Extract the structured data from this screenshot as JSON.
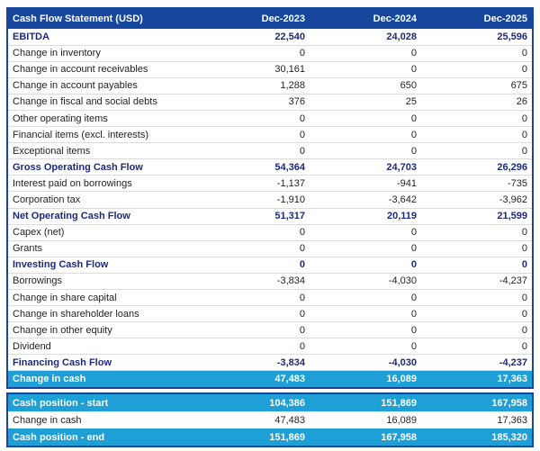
{
  "colors": {
    "header_bg": "#17479c",
    "border": "#17479c",
    "highlight_bg": "#1e9fd6",
    "bold_text": "#1c2a7e",
    "normal_text": "#1f1f1f",
    "divider": "#dcdcdc"
  },
  "header": {
    "title": "Cash Flow Statement (USD)",
    "columns": [
      "Dec-2023",
      "Dec-2024",
      "Dec-2025"
    ]
  },
  "main_table": {
    "rows": [
      {
        "label": "EBITDA",
        "values": [
          "22,540",
          "24,028",
          "25,596"
        ],
        "style": "bold"
      },
      {
        "label": "Change in inventory",
        "values": [
          "0",
          "0",
          "0"
        ],
        "style": "normal"
      },
      {
        "label": "Change in account receivables",
        "values": [
          "30,161",
          "0",
          "0"
        ],
        "style": "normal"
      },
      {
        "label": "Change in account payables",
        "values": [
          "1,288",
          "650",
          "675"
        ],
        "style": "normal"
      },
      {
        "label": "Change in fiscal and social debts",
        "values": [
          "376",
          "25",
          "26"
        ],
        "style": "normal"
      },
      {
        "label": "Other operating items",
        "values": [
          "0",
          "0",
          "0"
        ],
        "style": "normal"
      },
      {
        "label": "Financial items (excl. interests)",
        "values": [
          "0",
          "0",
          "0"
        ],
        "style": "normal"
      },
      {
        "label": "Exceptional items",
        "values": [
          "0",
          "0",
          "0"
        ],
        "style": "normal"
      },
      {
        "label": "Gross Operating Cash Flow",
        "values": [
          "54,364",
          "24,703",
          "26,296"
        ],
        "style": "bold"
      },
      {
        "label": "Interest paid on borrowings",
        "values": [
          "-1,137",
          "-941",
          "-735"
        ],
        "style": "normal"
      },
      {
        "label": "Corporation tax",
        "values": [
          "-1,910",
          "-3,642",
          "-3,962"
        ],
        "style": "normal"
      },
      {
        "label": "Net Operating Cash Flow",
        "values": [
          "51,317",
          "20,119",
          "21,599"
        ],
        "style": "bold"
      },
      {
        "label": "Capex (net)",
        "values": [
          "0",
          "0",
          "0"
        ],
        "style": "normal"
      },
      {
        "label": "Grants",
        "values": [
          "0",
          "0",
          "0"
        ],
        "style": "normal"
      },
      {
        "label": "Investing Cash Flow",
        "values": [
          "0",
          "0",
          "0"
        ],
        "style": "bold"
      },
      {
        "label": "Borrowings",
        "values": [
          "-3,834",
          "-4,030",
          "-4,237"
        ],
        "style": "normal"
      },
      {
        "label": "Change in share capital",
        "values": [
          "0",
          "0",
          "0"
        ],
        "style": "normal"
      },
      {
        "label": "Change in shareholder loans",
        "values": [
          "0",
          "0",
          "0"
        ],
        "style": "normal"
      },
      {
        "label": "Change in other equity",
        "values": [
          "0",
          "0",
          "0"
        ],
        "style": "normal"
      },
      {
        "label": "Dividend",
        "values": [
          "0",
          "0",
          "0"
        ],
        "style": "normal"
      },
      {
        "label": "Financing Cash Flow",
        "values": [
          "-3,834",
          "-4,030",
          "-4,237"
        ],
        "style": "bold"
      },
      {
        "label": "Change in cash",
        "values": [
          "47,483",
          "16,089",
          "17,363"
        ],
        "style": "highlight"
      }
    ]
  },
  "cash_position_table": {
    "rows": [
      {
        "label": "Cash position - start",
        "values": [
          "104,386",
          "151,869",
          "167,958"
        ],
        "style": "highlight"
      },
      {
        "label": "Change in cash",
        "values": [
          "47,483",
          "16,089",
          "17,363"
        ],
        "style": "normal"
      },
      {
        "label": "Cash position - end",
        "values": [
          "151,869",
          "167,958",
          "185,320"
        ],
        "style": "highlight"
      }
    ]
  }
}
